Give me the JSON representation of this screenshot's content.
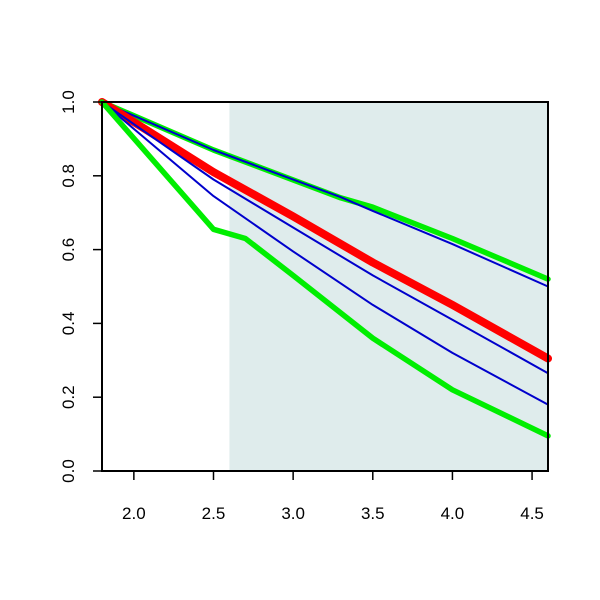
{
  "chart_data": {
    "type": "line",
    "title": "",
    "xlabel": "",
    "ylabel": "",
    "xlim": [
      1.8,
      4.6
    ],
    "ylim": [
      0.0,
      1.0
    ],
    "xticks": [
      2.0,
      2.5,
      3.0,
      3.5,
      4.0,
      4.5
    ],
    "xtick_labels": [
      "2.0",
      "2.5",
      "3.0",
      "3.5",
      "4.0",
      "4.5"
    ],
    "yticks": [
      0.0,
      0.2,
      0.4,
      0.6,
      0.8,
      1.0
    ],
    "ytick_labels": [
      "0.0",
      "0.2",
      "0.4",
      "0.6",
      "0.8",
      "1.0"
    ],
    "grid": false,
    "legend": "none",
    "shaded_region": {
      "x_from": 2.6,
      "x_to": 4.6,
      "color": "#dfecec"
    },
    "series": [
      {
        "color": "#00ee00",
        "role": "upper-bound",
        "x": [
          1.8,
          2.5,
          3.3,
          3.5,
          4.0,
          4.6
        ],
        "y": [
          1.0,
          0.87,
          0.74,
          0.715,
          0.63,
          0.52
        ]
      },
      {
        "color": "#0000cc",
        "role": "thin",
        "x": [
          1.8,
          2.5,
          3.3,
          3.5,
          4.0,
          4.6
        ],
        "y": [
          1.0,
          0.87,
          0.742,
          0.705,
          0.615,
          0.5
        ]
      },
      {
        "color": "#ff0000",
        "role": "central",
        "x": [
          1.8,
          2.5,
          3.0,
          3.5,
          4.0,
          4.6
        ],
        "y": [
          1.0,
          0.81,
          0.69,
          0.565,
          0.45,
          0.305
        ]
      },
      {
        "color": "#0000cc",
        "role": "thin",
        "x": [
          1.8,
          2.5,
          3.0,
          3.5,
          4.0,
          4.6
        ],
        "y": [
          1.0,
          0.79,
          0.66,
          0.53,
          0.41,
          0.265
        ]
      },
      {
        "color": "#0000cc",
        "role": "thin",
        "x": [
          1.8,
          2.5,
          3.0,
          3.5,
          4.0,
          4.6
        ],
        "y": [
          1.0,
          0.745,
          0.595,
          0.45,
          0.32,
          0.18
        ]
      },
      {
        "color": "#00ee00",
        "role": "lower-bound",
        "x": [
          1.8,
          2.5,
          2.7,
          3.0,
          3.5,
          4.0,
          4.6
        ],
        "y": [
          1.0,
          0.655,
          0.63,
          0.53,
          0.36,
          0.22,
          0.095
        ]
      }
    ]
  }
}
